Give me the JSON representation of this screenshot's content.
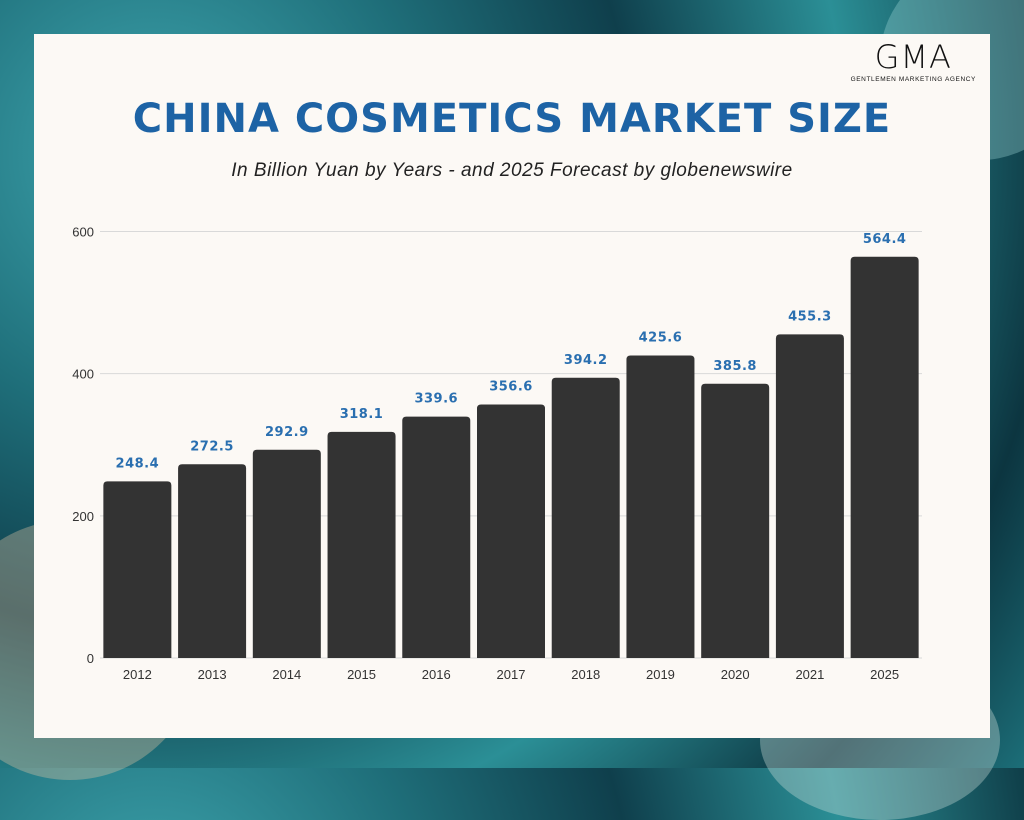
{
  "brand": {
    "logo_text": "GMA",
    "logo_subtitle": "GENTLEMEN MARKETING AGENCY"
  },
  "header": {
    "title": "CHINA COSMETICS MARKET SIZE",
    "subtitle": "In Billion Yuan  by Years - and 2025 Forecast by globenewswire"
  },
  "colors": {
    "bar": "#333333",
    "value_label": "#2a6fb0",
    "title": "#1d63a5",
    "grid": "#d9d9d9",
    "axis_text": "#333333"
  },
  "chart_data": {
    "type": "bar",
    "categories": [
      "2012",
      "2013",
      "2014",
      "2015",
      "2016",
      "2017",
      "2018",
      "2019",
      "2020",
      "2021",
      "2025"
    ],
    "values": [
      248.4,
      272.5,
      292.9,
      318.1,
      339.6,
      356.6,
      394.2,
      425.6,
      385.8,
      455.3,
      564.4
    ],
    "value_labels": [
      "248.4",
      "272.5",
      "292.9",
      "318.1",
      "339.6",
      "356.6",
      "394.2",
      "425.6",
      "385.8",
      "455.3",
      "564.4"
    ],
    "yticks": [
      "0",
      "200",
      "400",
      "600"
    ],
    "ylim": [
      0,
      600
    ],
    "grid": true,
    "title": "CHINA COSMETICS MARKET SIZE",
    "xlabel": "",
    "ylabel": ""
  }
}
